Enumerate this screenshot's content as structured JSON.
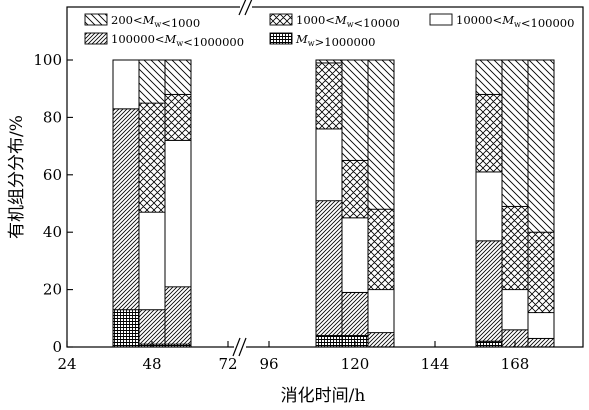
{
  "chart_data": {
    "type": "bar",
    "stacked": true,
    "percent_stacked": true,
    "xlabel": "消化时间/h",
    "ylabel": "有机组分分布/%",
    "ylim": [
      0,
      100
    ],
    "y_ticks": [
      "0",
      "20",
      "40",
      "60",
      "80",
      "100"
    ],
    "x_ticks": [
      "24",
      "48",
      "72",
      "96",
      "120",
      "144",
      "168"
    ],
    "x_axis_break": "between 72 and 96",
    "grid": false,
    "legend_position": "top",
    "legend": [
      {
        "id": "s200",
        "pattern": "hatch-back-sparse",
        "label": "200<Mw<1000"
      },
      {
        "id": "s1000",
        "pattern": "crosshatch",
        "label": "1000<Mw<10000"
      },
      {
        "id": "s10000",
        "pattern": "white",
        "label": "10000<Mw<100000"
      },
      {
        "id": "s100000",
        "pattern": "hatch-fwd-dense",
        "label": "100000<Mw<1000000"
      },
      {
        "id": "s1e6",
        "pattern": "grid",
        "label": "Mw>1000000"
      }
    ],
    "groups": [
      {
        "time": "48",
        "bars": [
          {
            "segments": {
              "s1e6": 13,
              "s100000": 70,
              "s10000": 17,
              "s1000": 0,
              "s200": 0
            }
          },
          {
            "segments": {
              "s1e6": 1,
              "s100000": 12,
              "s10000": 34,
              "s1000": 38,
              "s200": 15
            }
          },
          {
            "segments": {
              "s1e6": 1,
              "s100000": 20,
              "s10000": 51,
              "s1000": 16,
              "s200": 12
            }
          }
        ]
      },
      {
        "time": "120",
        "bars": [
          {
            "segments": {
              "s1e6": 4,
              "s100000": 47,
              "s10000": 25,
              "s1000": 23,
              "s200": 1
            }
          },
          {
            "segments": {
              "s1e6": 4,
              "s100000": 15,
              "s10000": 26,
              "s1000": 20,
              "s200": 35
            }
          },
          {
            "segments": {
              "s1e6": 0,
              "s100000": 5,
              "s10000": 15,
              "s1000": 28,
              "s200": 52
            }
          }
        ]
      },
      {
        "time": "168",
        "bars": [
          {
            "segments": {
              "s1e6": 2,
              "s100000": 35,
              "s10000": 24,
              "s1000": 27,
              "s200": 12
            }
          },
          {
            "segments": {
              "s1e6": 0,
              "s100000": 6,
              "s10000": 14,
              "s1000": 29,
              "s200": 51
            }
          },
          {
            "segments": {
              "s1e6": 0,
              "s100000": 3,
              "s10000": 9,
              "s1000": 28,
              "s200": 60
            }
          }
        ]
      }
    ]
  }
}
